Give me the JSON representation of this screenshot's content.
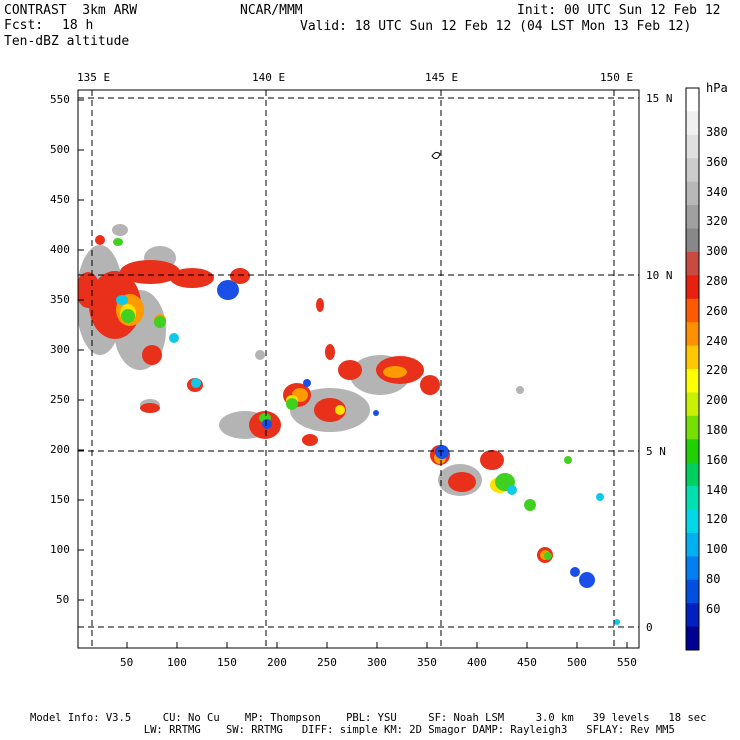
{
  "header": {
    "model": "CONTRAST  3km ARW",
    "fcst_label": "Fcst:",
    "fcst_value": "18 h",
    "field": "Ten-dBZ altitude",
    "center": "NCAR/MMM",
    "init": "Init: 00 UTC Sun 12 Feb 12",
    "valid": "Valid: 18 UTC Sun 12 Feb 12 (04 LST Mon 13 Feb 12)"
  },
  "axes": {
    "lon_labels": [
      "135 E",
      "140 E",
      "145 E",
      "150 E"
    ],
    "lat_labels": [
      "15 N",
      "10 N",
      "5 N",
      "0"
    ],
    "x_ticks": [
      "50",
      "100",
      "150",
      "200",
      "250",
      "300",
      "350",
      "400",
      "450",
      "500",
      "550"
    ],
    "y_ticks": [
      "550",
      "500",
      "450",
      "400",
      "350",
      "300",
      "250",
      "200",
      "150",
      "100",
      "50"
    ]
  },
  "colorbar": {
    "unit": "hPa",
    "labels": [
      "380",
      "360",
      "340",
      "320",
      "300",
      "280",
      "260",
      "240",
      "220",
      "200",
      "180",
      "160",
      "140",
      "120",
      "100",
      "80",
      "60"
    ],
    "colors": [
      "#ffffff",
      "#f0f0f0",
      "#e0e0e0",
      "#cccccc",
      "#b8b8b8",
      "#a0a0a0",
      "#888888",
      "#c84a40",
      "#e82010",
      "#ff5a00",
      "#ff9000",
      "#ffc800",
      "#ffff00",
      "#c8f000",
      "#78e000",
      "#20d000",
      "#00d060",
      "#00e0b0",
      "#00d8e8",
      "#00b0f0",
      "#0080f0",
      "#0050e0",
      "#0020c0",
      "#000090"
    ]
  },
  "footer": {
    "line1": "Model Info: V3.5     CU: No Cu    MP: Thompson    PBL: YSU     SF: Noah LSM     3.0 km   39 levels   18 sec",
    "line2": "                  LW: RRTMG    SW: RRTMG   DIFF: simple KM: 2D Smagor DAMP: Rayleigh3   SFLAY: Rev MM5"
  }
}
